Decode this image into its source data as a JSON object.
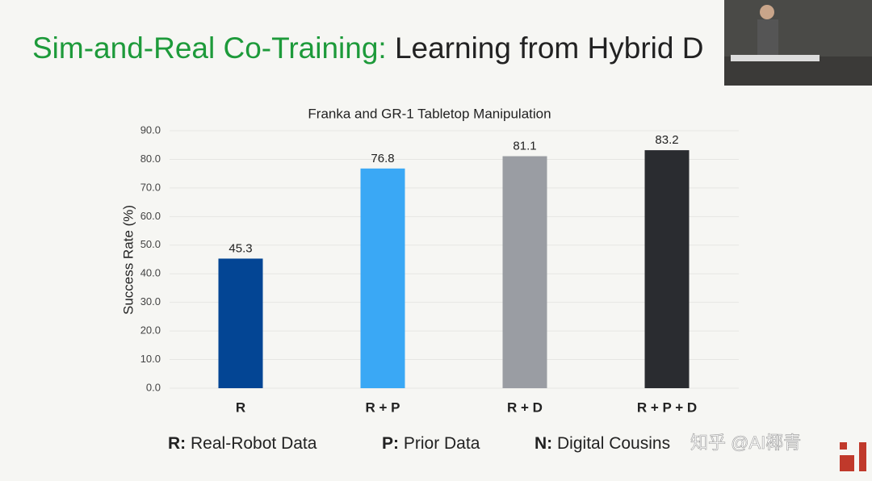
{
  "slide": {
    "title_highlight": "Sim-and-Real Co-Training:",
    "title_rest": "Learning from Hybrid D",
    "legend": [
      {
        "key": "R:",
        "text": "Real-Robot Data"
      },
      {
        "key": "P:",
        "text": "Prior Data"
      },
      {
        "key": "N:",
        "text": "Digital Cousins"
      }
    ],
    "watermark": "知乎 @AI椰青"
  },
  "chart_data": {
    "type": "bar",
    "title": "Franka and GR-1 Tabletop Manipulation",
    "y_label": "Success Rate (%)",
    "categories": [
      "R",
      "R + P",
      "R + D",
      "R + P + D"
    ],
    "values": [
      45.3,
      76.8,
      81.1,
      83.2
    ],
    "colors": [
      "#034594",
      "#3aa8f5",
      "#9a9da3",
      "#2a2c30"
    ],
    "ylim": [
      0,
      90
    ],
    "yticks": [
      {
        "value": 0,
        "label": "0.0"
      },
      {
        "value": 10,
        "label": "10.0"
      },
      {
        "value": 20,
        "label": "20.0"
      },
      {
        "value": 30,
        "label": "30.0"
      },
      {
        "value": 40,
        "label": "40.0"
      },
      {
        "value": 50,
        "label": "50.0"
      },
      {
        "value": 60,
        "label": "60.0"
      },
      {
        "value": 70,
        "label": "70.0"
      },
      {
        "value": 80,
        "label": "80.0"
      },
      {
        "value": 90,
        "label": "90.0"
      }
    ],
    "grid": true
  }
}
